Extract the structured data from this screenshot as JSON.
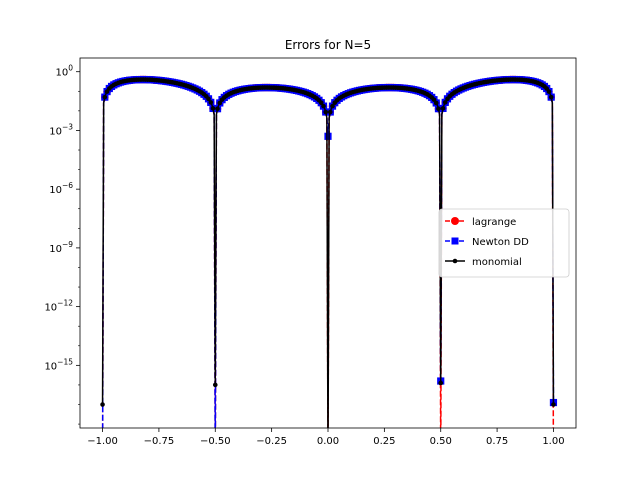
{
  "chart_data": {
    "type": "line",
    "title": "Errors for N=5",
    "xlabel": "",
    "ylabel": "",
    "xlim": [
      -1.1,
      1.1
    ],
    "ylim_exponent": [
      -18.2,
      0.7
    ],
    "yscale": "log",
    "grid": false,
    "legend_position": "center-right",
    "nodes": [
      -1.0,
      -0.5,
      0.0,
      0.5,
      1.0
    ],
    "x_ticks": [
      -1.0,
      -0.75,
      -0.5,
      -0.25,
      0.0,
      0.25,
      0.5,
      0.75,
      1.0
    ],
    "x_tick_labels": [
      "−1.00",
      "−0.75",
      "−0.50",
      "−0.25",
      "0.00",
      "0.25",
      "0.50",
      "0.75",
      "1.00"
    ],
    "y_tick_exponents": [
      0,
      -3,
      -6,
      -9,
      -12,
      -15
    ],
    "y_tick_labels": [
      "10^0",
      "10^−3",
      "10^−6",
      "10^−9",
      "10^−12",
      "10^−15"
    ],
    "series": [
      {
        "name": "lagrange",
        "color": "#ff0000",
        "linestyle": "dashed",
        "marker": "circle",
        "node_drop_exponents": [
          -20,
          -20,
          -20,
          -20,
          -20
        ]
      },
      {
        "name": "Newton DD",
        "color": "#0000ff",
        "linestyle": "dashed",
        "marker": "square",
        "node_drop_exponents": [
          -20,
          -20,
          -3.3,
          -15.8,
          -16.9
        ]
      },
      {
        "name": "monomial",
        "color": "#000000",
        "linestyle": "solid",
        "marker": "point",
        "node_drop_exponents": [
          -17.0,
          -16.0,
          -20,
          -15.9,
          -17.0
        ]
      }
    ]
  }
}
